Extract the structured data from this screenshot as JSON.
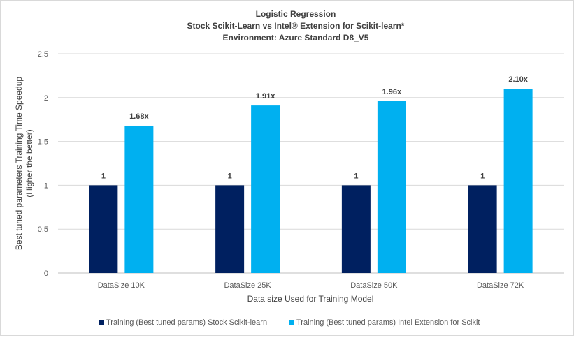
{
  "chart_data": {
    "type": "bar",
    "title": [
      "Logistic Regression",
      "Stock Scikit-Learn vs Intel® Extension for Scikit-learn*",
      "Environment: Azure Standard D8_V5"
    ],
    "xlabel": "Data size Used for Training Model",
    "ylabel": [
      "Best tuned parameters Training Time Speedup",
      "(Higher the better)"
    ],
    "categories": [
      "DataSize 10K",
      "DataSize 25K",
      "DataSize 50K",
      "DataSize 72K"
    ],
    "ylim": [
      0,
      2.5
    ],
    "yticks": [
      "0",
      "0.5",
      "1",
      "1.5",
      "2",
      "2.5"
    ],
    "grid": true,
    "legend_position": "bottom",
    "series": [
      {
        "name": "Training (Best tuned params) Stock Scikit-learn",
        "color": "#002060",
        "values": [
          1,
          1,
          1,
          1
        ],
        "labels": [
          "1",
          "1",
          "1",
          "1"
        ]
      },
      {
        "name": "Training (Best tuned params) Intel Extension for Scikit",
        "color": "#00b0f0",
        "values": [
          1.68,
          1.91,
          1.96,
          2.1
        ],
        "labels": [
          "1.68x",
          "1.91x",
          "1.96x",
          "2.10x"
        ]
      }
    ]
  }
}
